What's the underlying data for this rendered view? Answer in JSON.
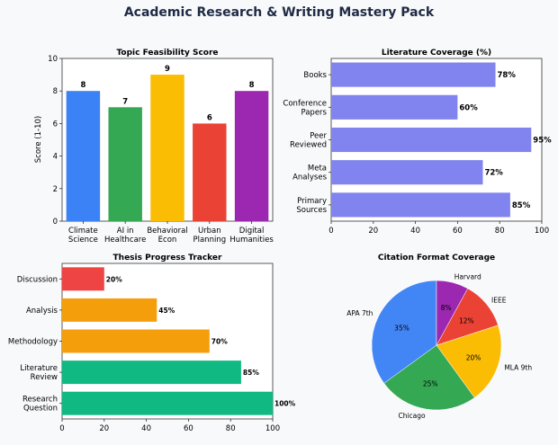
{
  "page": {
    "title": "Academic Research & Writing Mastery Pack",
    "colors": {
      "background": "#f8f9fb",
      "title": "#1f2a44"
    }
  },
  "chart_data": [
    {
      "id": "feasibility",
      "type": "bar",
      "title": "Topic Feasibility Score",
      "xlabel": "",
      "ylabel": "Score (1-10)",
      "ylim": [
        0,
        10
      ],
      "yticks": [
        0,
        2,
        4,
        6,
        8,
        10
      ],
      "categories": [
        "Climate\nScience",
        "AI in\nHealthcare",
        "Behavioral\nEcon",
        "Urban\nPlanning",
        "Digital\nHumanities"
      ],
      "values": [
        8,
        7,
        9,
        6,
        8
      ],
      "data_labels": [
        "8",
        "7",
        "9",
        "6",
        "8"
      ],
      "colors": [
        "#3b82f6",
        "#34a853",
        "#fbbc04",
        "#ea4335",
        "#9c27b0"
      ],
      "grid": false
    },
    {
      "id": "literature",
      "type": "bar",
      "orientation": "horizontal",
      "title": "Literature Coverage (%)",
      "xlabel": "",
      "ylabel": "",
      "xlim": [
        0,
        100
      ],
      "xticks": [
        0,
        20,
        40,
        60,
        80,
        100
      ],
      "categories": [
        "Books",
        "Conference\nPapers",
        "Peer\nReviewed",
        "Meta\nAnalyses",
        "Primary\nSources"
      ],
      "values": [
        78,
        60,
        95,
        72,
        85
      ],
      "data_labels": [
        "78%",
        "60%",
        "95%",
        "72%",
        "85%"
      ],
      "color": "#8184ee",
      "grid": false
    },
    {
      "id": "thesis",
      "type": "bar",
      "orientation": "horizontal",
      "title": "Thesis Progress Tracker",
      "xlabel": "",
      "ylabel": "",
      "xlim": [
        0,
        100
      ],
      "xticks": [
        0,
        20,
        40,
        60,
        80,
        100
      ],
      "categories": [
        "Discussion",
        "Analysis",
        "Methodology",
        "Literature\nReview",
        "Research\nQuestion"
      ],
      "values": [
        20,
        45,
        70,
        85,
        100
      ],
      "data_labels": [
        "20%",
        "45%",
        "70%",
        "85%",
        "100%"
      ],
      "colors": [
        "#ef4444",
        "#f59e0b",
        "#f59e0b",
        "#10b981",
        "#10b981"
      ],
      "grid": false
    },
    {
      "id": "citation",
      "type": "pie",
      "title": "Citation Format Coverage",
      "labels": [
        "APA 7th",
        "Chicago",
        "MLA 9th",
        "IEEE",
        "Harvard"
      ],
      "values": [
        35,
        25,
        20,
        12,
        8
      ],
      "data_labels": [
        "35%",
        "25%",
        "20%",
        "12%",
        "8%"
      ],
      "colors": [
        "#4285f4",
        "#34a853",
        "#fbbc04",
        "#ea4335",
        "#9c27b0"
      ],
      "start_angle": 90,
      "direction": "counterclockwise"
    }
  ]
}
